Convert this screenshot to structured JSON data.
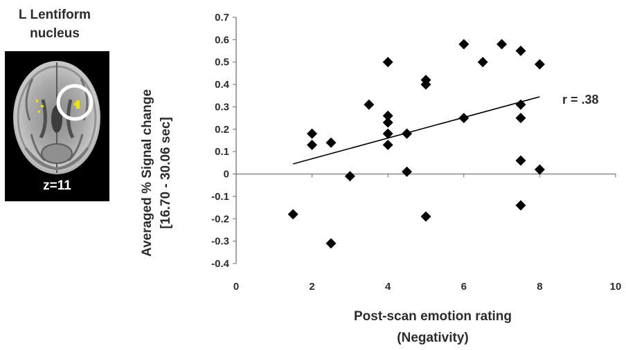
{
  "brain_panel": {
    "title_line1": "L Lentiform",
    "title_line2": "nucleus",
    "slice_label": "z=11"
  },
  "chart_data": {
    "type": "scatter",
    "title": "",
    "xlabel_line1": "Post-scan emotion rating",
    "xlabel_line2": "(Negativity)",
    "ylabel_line1": "Averaged % Signal change",
    "ylabel_line2": "[16.70 - 30.06 sec]",
    "xlim": [
      0,
      10
    ],
    "ylim": [
      -0.4,
      0.7
    ],
    "x_ticks": [
      "0",
      "2",
      "4",
      "6",
      "8",
      "10"
    ],
    "y_ticks": [
      "0.7",
      "0.6",
      "0.5",
      "0.4",
      "0.3",
      "0.2",
      "0.1",
      "0",
      "-0.1",
      "-0.2",
      "-0.3",
      "-0.4"
    ],
    "grid": false,
    "annotation": "r = .38",
    "trendline": {
      "x": [
        1.5,
        8.0
      ],
      "y": [
        0.045,
        0.345
      ]
    },
    "points": [
      {
        "x": 1.5,
        "y": -0.18
      },
      {
        "x": 2.0,
        "y": 0.18
      },
      {
        "x": 2.0,
        "y": 0.13
      },
      {
        "x": 2.5,
        "y": 0.14
      },
      {
        "x": 2.5,
        "y": -0.31
      },
      {
        "x": 3.0,
        "y": -0.01
      },
      {
        "x": 3.5,
        "y": 0.31
      },
      {
        "x": 4.0,
        "y": 0.5
      },
      {
        "x": 4.0,
        "y": 0.26
      },
      {
        "x": 4.0,
        "y": 0.23
      },
      {
        "x": 4.0,
        "y": 0.18
      },
      {
        "x": 4.0,
        "y": 0.13
      },
      {
        "x": 4.5,
        "y": 0.18
      },
      {
        "x": 4.5,
        "y": 0.01
      },
      {
        "x": 5.0,
        "y": 0.42
      },
      {
        "x": 5.0,
        "y": 0.4
      },
      {
        "x": 5.0,
        "y": -0.19
      },
      {
        "x": 6.0,
        "y": 0.58
      },
      {
        "x": 6.0,
        "y": 0.25
      },
      {
        "x": 6.5,
        "y": 0.5
      },
      {
        "x": 7.0,
        "y": 0.58
      },
      {
        "x": 7.5,
        "y": 0.55
      },
      {
        "x": 7.5,
        "y": 0.31
      },
      {
        "x": 7.5,
        "y": 0.25
      },
      {
        "x": 7.5,
        "y": 0.06
      },
      {
        "x": 7.5,
        "y": -0.14
      },
      {
        "x": 8.0,
        "y": 0.49
      },
      {
        "x": 8.0,
        "y": 0.02
      }
    ]
  },
  "colors": {
    "marker": "#000000",
    "text": "#2b2b2b",
    "highlight": "#f2e600",
    "roi_circle": "#ffffff"
  }
}
